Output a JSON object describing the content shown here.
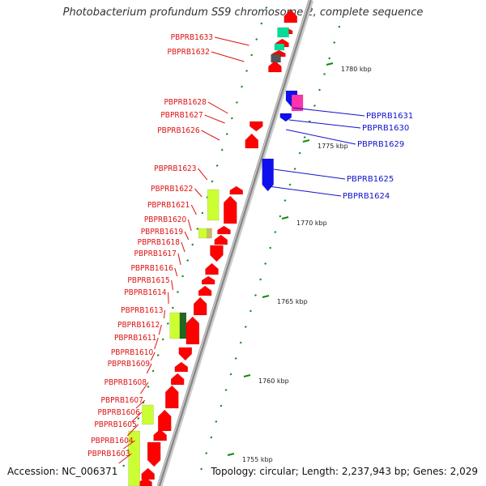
{
  "title": "Photobacterium profundum SS9 chromosome 2, complete sequence",
  "footer": {
    "accession": "Accession: NC_006371",
    "summary": "Topology: circular; Length: 2,237,943 bp; Genes: 2,029"
  },
  "scale_labels": [
    "1780 kbp",
    "1775 kbp",
    "1770 kbp",
    "1765 kbp",
    "1760 kbp",
    "1755 kbp"
  ],
  "left_genes": [
    "PBPRB1633",
    "PBPRB1632",
    "PBPRB1628",
    "PBPRB1627",
    "PBPRB1626",
    "PBPRB1623",
    "PBPRB1622",
    "PBPRB1621",
    "PBPRB1620",
    "PBPRB1619",
    "PBPRB1618",
    "PBPRB1617",
    "PBPRB1616",
    "PBPRB1615",
    "PBPRB1614",
    "PBPRB1613",
    "PBPRB1612",
    "PBPRB1611",
    "PBPRB1610",
    "PBPRB1609",
    "PBPRB1608",
    "PBPRB1607",
    "PBPRB1606",
    "PBPRB1605",
    "PBPRB1604",
    "PBPRB1603"
  ],
  "right_genes": [
    "PBPRB1631",
    "PBPRB1630",
    "PBPRB1629",
    "PBPRB1625",
    "PBPRB1624"
  ],
  "colors": {
    "forward": "#ff0000",
    "reverse": "#1010ee",
    "rna_green": "#ccff33",
    "teal": "#00dd99",
    "magenta": "#ff33aa",
    "gray": "#555555",
    "tick": "#118811",
    "left_label": "#dd1111",
    "right_label": "#1111cc"
  }
}
